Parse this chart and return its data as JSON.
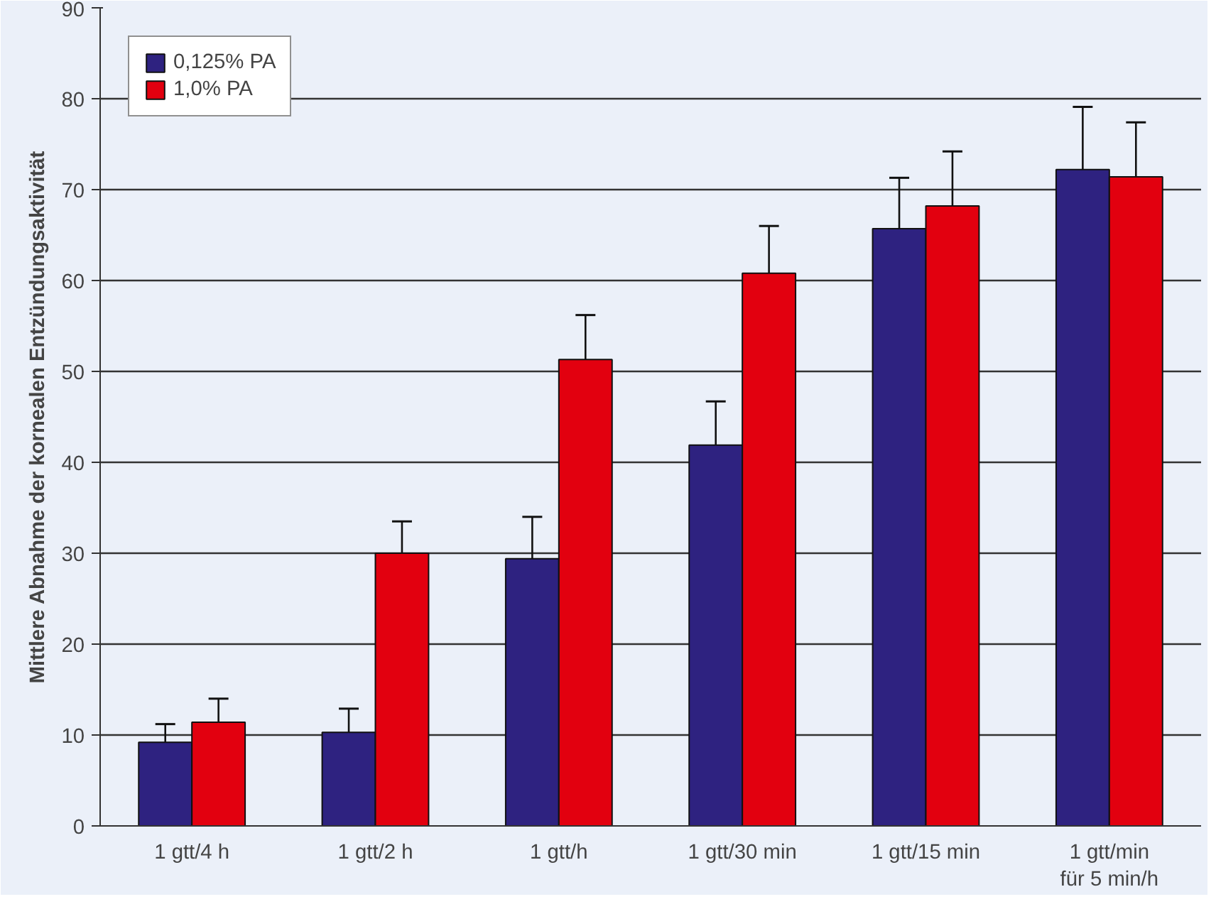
{
  "chart_data": {
    "type": "bar",
    "ylabel": "Mittlere Abnahme der kornealen Entzündungsaktivität",
    "categories": [
      "1 gtt/4 h",
      "1 gtt/2 h",
      "1 gtt/h",
      "1 gtt/30 min",
      "1 gtt/15 min",
      "1 gtt/min\nfür 5 min/h"
    ],
    "series": [
      {
        "name": "0,125% PA",
        "color": "#2e2280",
        "values": [
          9.2,
          10.3,
          29.4,
          41.9,
          65.7,
          72.2
        ],
        "errors": [
          [
            9.2,
            11.2
          ],
          [
            10.3,
            12.9
          ],
          [
            29.4,
            34.0
          ],
          [
            41.9,
            46.7
          ],
          [
            65.7,
            71.3
          ],
          [
            72.2,
            79.1
          ]
        ]
      },
      {
        "name": "1,0% PA",
        "color": "#e2000f",
        "values": [
          11.4,
          30.0,
          51.3,
          60.8,
          68.2,
          71.4
        ],
        "errors": [
          [
            11.4,
            14.0
          ],
          [
            30.0,
            33.5
          ],
          [
            51.3,
            56.2
          ],
          [
            60.8,
            66.0
          ],
          [
            68.2,
            74.2
          ],
          [
            71.4,
            77.4
          ]
        ]
      }
    ],
    "ylim": [
      0,
      90
    ],
    "yticks": [
      0,
      10,
      20,
      30,
      40,
      50,
      60,
      70,
      80,
      90
    ],
    "grid": "y",
    "legend": "top left"
  }
}
